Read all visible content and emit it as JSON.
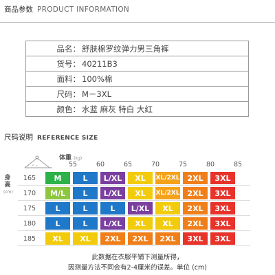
{
  "header": {
    "zh": "商品参数",
    "en": "PRODUCT INFORMATION"
  },
  "params": [
    {
      "key": "品名：",
      "value": "舒肤棉罗纹弹力男三角裤"
    },
    {
      "key": "货号：",
      "value": "40211B3"
    },
    {
      "key": "面料：",
      "value": "100%棉"
    },
    {
      "key": "尺码：",
      "value": "M－3XL"
    },
    {
      "key": "颜色：",
      "value": "水蓝 麻灰 特白 大红"
    }
  ],
  "size_header": {
    "zh": "尺码说明",
    "en": "REFERENCE SIZE"
  },
  "table": {
    "weight_label": "体重",
    "weight_unit": "(kg)",
    "height_label": "身高",
    "height_unit": "(cm)",
    "columns": [
      "55",
      "60",
      "65",
      "70",
      "75",
      "80",
      "85"
    ],
    "rows": [
      {
        "height": "165",
        "cells": [
          "M",
          "L",
          "L/XL",
          "XL",
          "XL/2XL",
          "2XL",
          "3XL"
        ]
      },
      {
        "height": "170",
        "cells": [
          "M/L",
          "L",
          "L/XL",
          "XL",
          "XL/2XL",
          "2XL",
          "3XL"
        ]
      },
      {
        "height": "175",
        "cells": [
          "L",
          "L",
          "L",
          "L/XL",
          "XL",
          "2XL",
          "3XL"
        ]
      },
      {
        "height": "180",
        "cells": [
          "L",
          "L",
          "L/XL",
          "XL",
          "XL",
          "2XL",
          "3XL"
        ]
      },
      {
        "height": "185",
        "cells": [
          "XL",
          "XL",
          "2XL",
          "2XL",
          "2XL",
          "3XL",
          "3XL"
        ]
      }
    ],
    "size_colors": {
      "M": "#2db24a",
      "M/L": "#8dc63f",
      "L": "#1f78c8",
      "L/XL": "#7b3fa0",
      "XL": "#f2cc0c",
      "XL/2XL": "#f5a21b",
      "2XL": "#f07f1a",
      "3XL": "#e8332b"
    }
  },
  "notes": [
    "此数据在衣服平铺下测量所得，",
    "因测量方法不同会有2-4厘米的误差。单位 (cm)"
  ]
}
